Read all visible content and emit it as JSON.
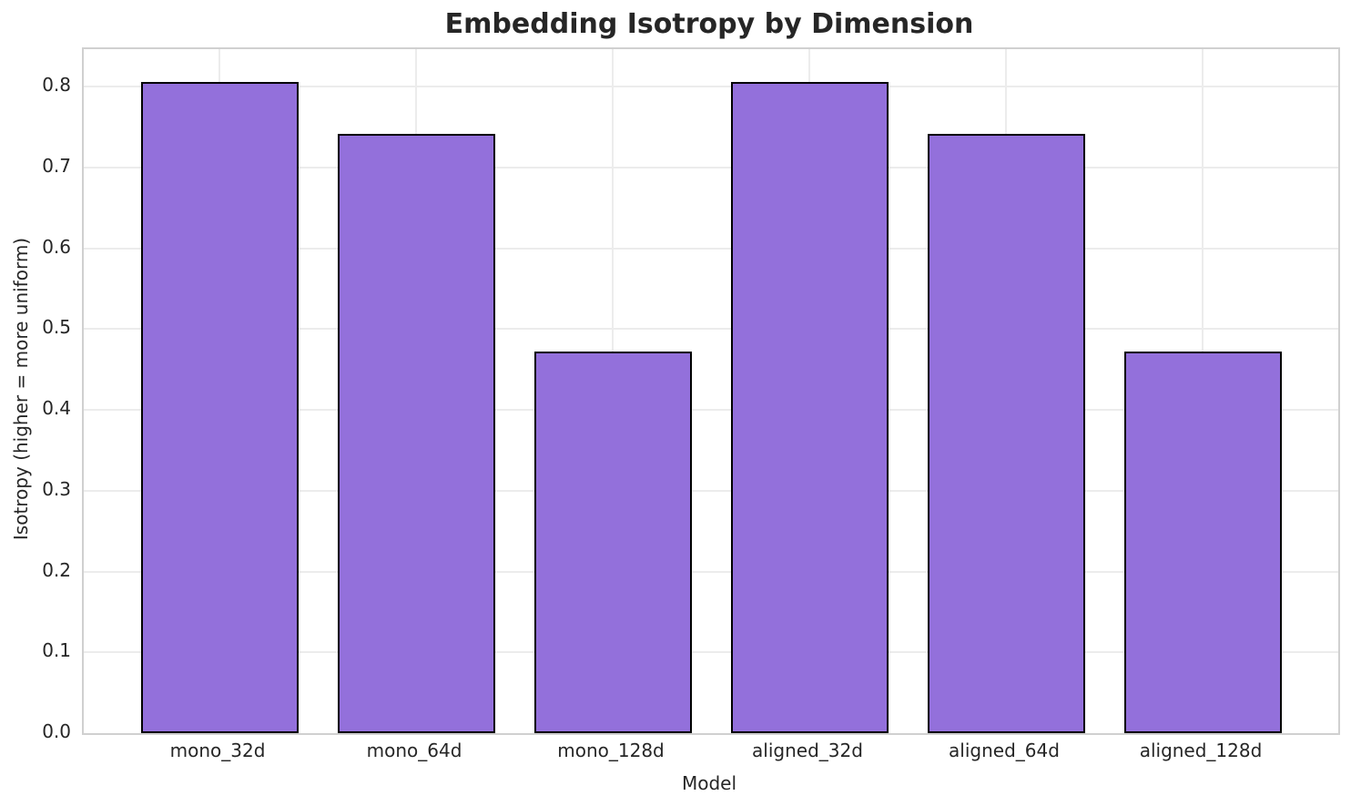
{
  "chart_data": {
    "type": "bar",
    "title": "Embedding Isotropy by Dimension",
    "xlabel": "Model",
    "ylabel": "Isotropy (higher = more uniform)",
    "categories": [
      "mono_32d",
      "mono_64d",
      "mono_128d",
      "aligned_32d",
      "aligned_64d",
      "aligned_128d"
    ],
    "values": [
      0.806,
      0.741,
      0.472,
      0.806,
      0.741,
      0.472
    ],
    "ylim": [
      0,
      0.8462
    ],
    "yticks": [
      0.0,
      0.1,
      0.2,
      0.3,
      0.4,
      0.5,
      0.6,
      0.7,
      0.8
    ],
    "ytick_labels": [
      "0.0",
      "0.1",
      "0.2",
      "0.3",
      "0.4",
      "0.5",
      "0.6",
      "0.7",
      "0.8"
    ],
    "grid": true,
    "grid_axis": "both",
    "legend": null,
    "colors": {
      "bar_fill": "#9370DB",
      "bar_edge": "#000000",
      "grid": "#ececec",
      "spine": "#d0d0d0",
      "text": "#262626",
      "background": "#ffffff"
    }
  }
}
